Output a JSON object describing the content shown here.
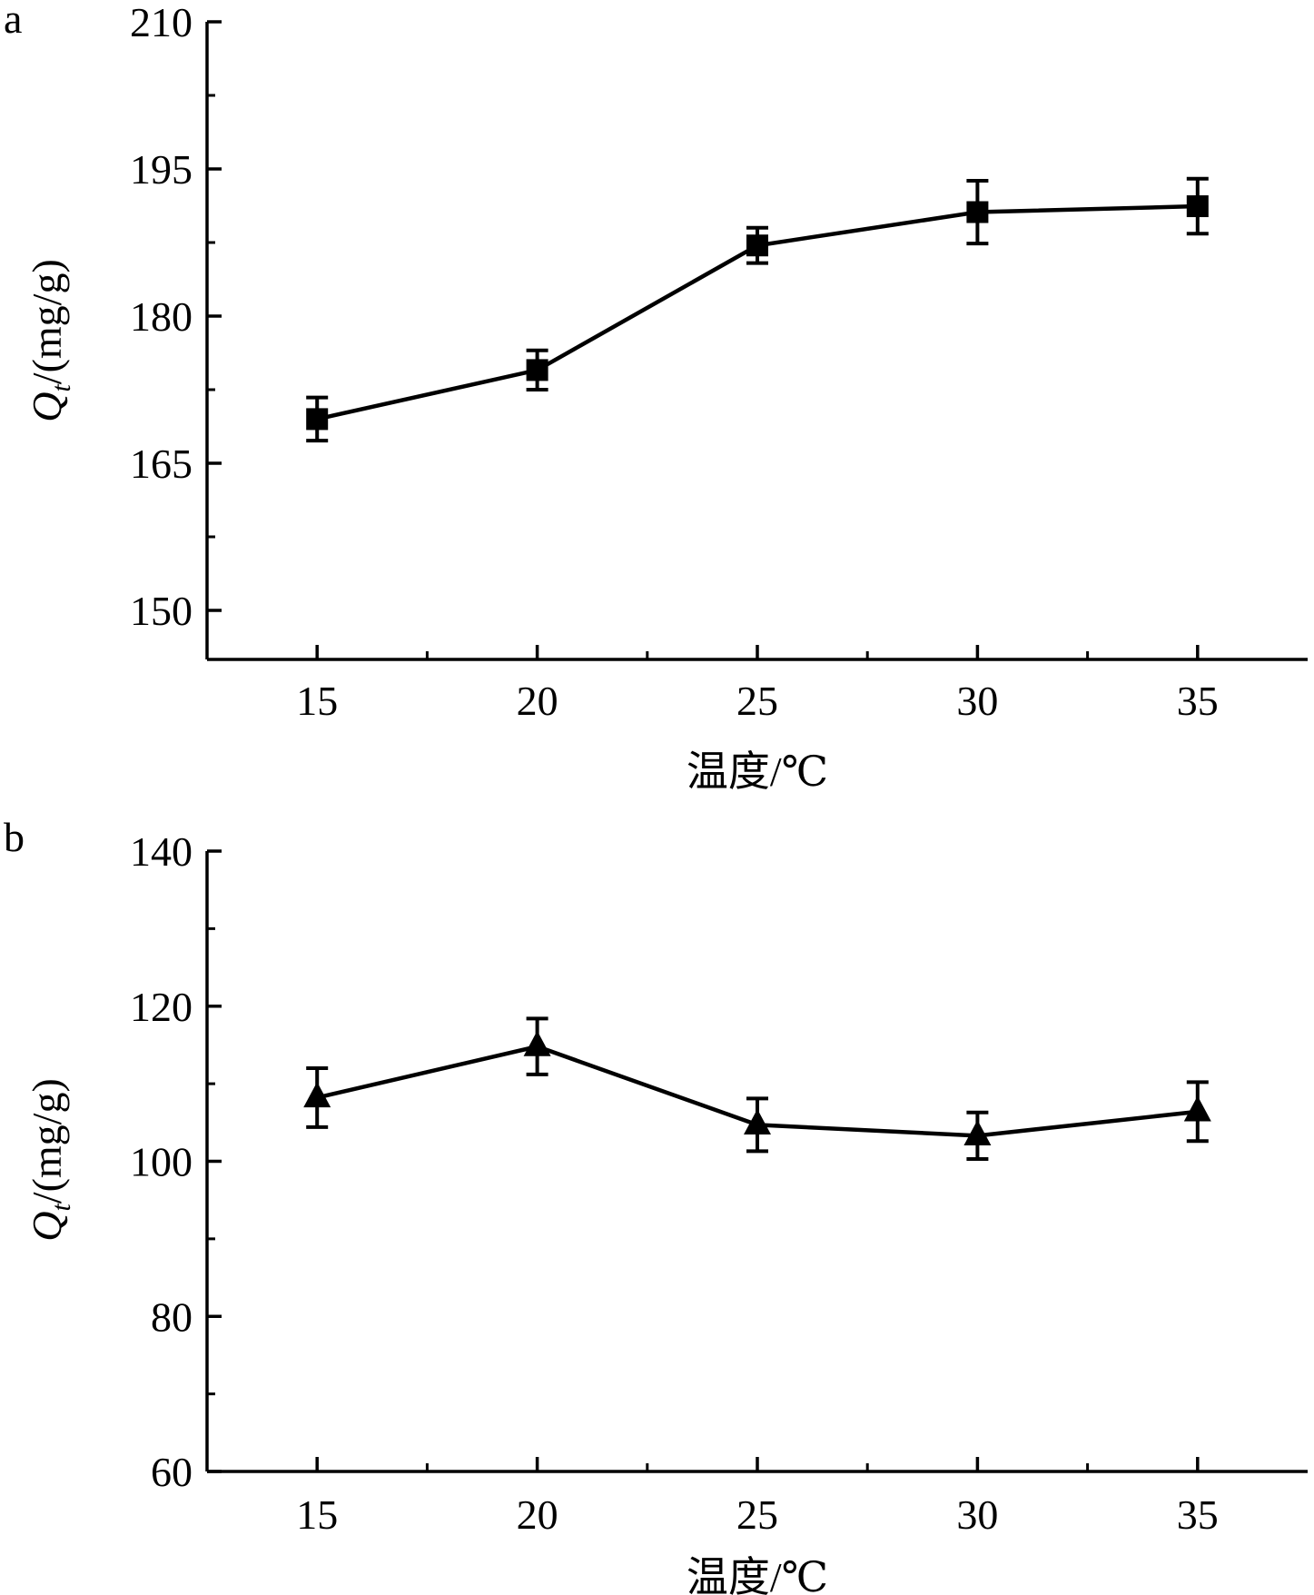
{
  "chart_data": [
    {
      "panel_label": "a",
      "type": "line",
      "marker": "square",
      "x": [
        15,
        20,
        25,
        30,
        35
      ],
      "y": [
        169.5,
        174.5,
        187.2,
        190.6,
        191.2
      ],
      "error": [
        2.2,
        2.0,
        1.8,
        3.2,
        2.8
      ],
      "xlabel": "温度/℃",
      "ylabel_main": "Q",
      "ylabel_sub": "t",
      "ylabel_rest": "/(mg/g)",
      "xlim": [
        12.5,
        37.5
      ],
      "ylim": [
        145,
        210
      ],
      "xticks": [
        15,
        20,
        25,
        30,
        35
      ],
      "yticks": [
        150,
        165,
        180,
        195,
        210
      ],
      "grid": false,
      "legend": "none",
      "color": "#000000"
    },
    {
      "panel_label": "b",
      "type": "line",
      "marker": "triangle",
      "x": [
        15,
        20,
        25,
        30,
        35
      ],
      "y": [
        108.2,
        114.8,
        104.7,
        103.3,
        106.4
      ],
      "error": [
        3.8,
        3.6,
        3.4,
        3.0,
        3.8
      ],
      "xlabel": "温度/℃",
      "ylabel_main": "Q",
      "ylabel_sub": "t",
      "ylabel_rest": "/(mg/g)",
      "xlim": [
        12.5,
        37.5
      ],
      "ylim": [
        60,
        140
      ],
      "xticks": [
        15,
        20,
        25,
        30,
        35
      ],
      "yticks": [
        60,
        80,
        100,
        120,
        140
      ],
      "grid": false,
      "legend": "none",
      "color": "#000000"
    }
  ]
}
